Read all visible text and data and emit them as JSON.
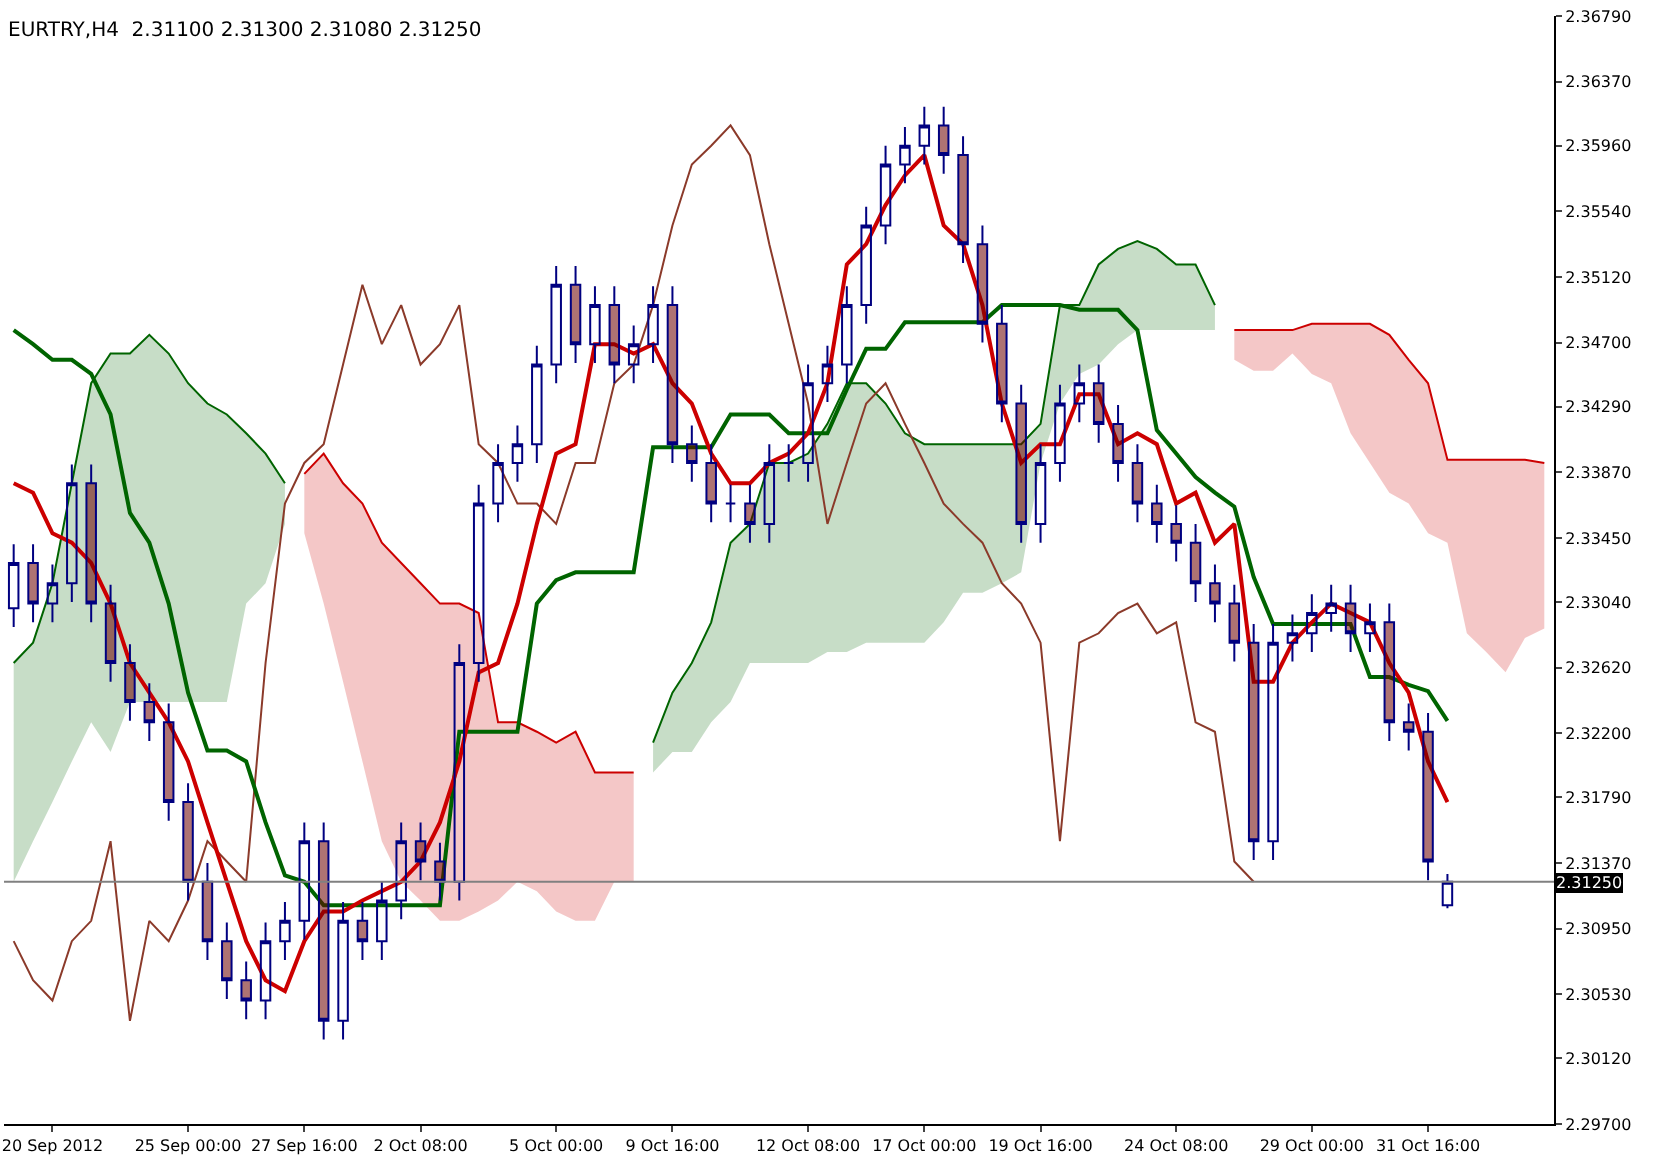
{
  "chart_data": {
    "type": "candlestick",
    "title": "EURTRY,H4  2.31100 2.31300 2.31080 2.31250",
    "categories": [
      null,
      null,
      "20 Sep 2012",
      null,
      null,
      null,
      null,
      null,
      null,
      "25 Sep 00:00",
      null,
      null,
      null,
      null,
      null,
      "27 Sep 16:00",
      null,
      null,
      null,
      null,
      null,
      "2 Oct 08:00",
      null,
      null,
      null,
      null,
      null,
      null,
      "5 Oct 00:00",
      null,
      null,
      null,
      null,
      null,
      "9 Oct 16:00",
      null,
      null,
      null,
      null,
      null,
      null,
      "12 Oct 08:00",
      null,
      null,
      null,
      null,
      null,
      "17 Oct 00:00",
      null,
      null,
      null,
      null,
      null,
      "19 Oct 16:00",
      null,
      null,
      null,
      null,
      null,
      null,
      "24 Oct 08:00",
      null,
      null,
      null,
      null,
      null,
      null,
      "29 Oct 00:00",
      null,
      null,
      null,
      null,
      null,
      "31 Oct 16:00",
      null,
      null,
      null,
      null,
      null,
      null
    ],
    "ohlc": [
      [
        2.33,
        2.3341,
        2.3288,
        2.3329
      ],
      [
        2.3329,
        2.3341,
        2.3291,
        2.3303
      ],
      [
        2.3303,
        2.3328,
        2.3291,
        2.3316
      ],
      [
        2.3316,
        2.3392,
        2.3304,
        2.338
      ],
      [
        2.338,
        2.3392,
        2.3291,
        2.3303
      ],
      [
        2.3303,
        2.3315,
        2.3253,
        2.3265
      ],
      [
        2.3265,
        2.3277,
        2.3228,
        2.324
      ],
      [
        2.324,
        2.3252,
        2.3215,
        2.3227
      ],
      [
        2.3227,
        2.3239,
        2.3164,
        2.3176
      ],
      [
        2.3176,
        2.3188,
        2.3113,
        2.3125
      ],
      [
        2.3125,
        2.3137,
        2.3075,
        2.3087
      ],
      [
        2.3087,
        2.3099,
        2.305,
        2.3062
      ],
      [
        2.3062,
        2.3074,
        2.3037,
        2.3049
      ],
      [
        2.3049,
        2.3099,
        2.3037,
        2.3087
      ],
      [
        2.3087,
        2.3112,
        2.3075,
        2.31
      ],
      [
        2.31,
        2.3163,
        2.3088,
        2.3151
      ],
      [
        2.3151,
        2.3163,
        2.3024,
        2.3036
      ],
      [
        2.3036,
        2.3112,
        2.3024,
        2.31
      ],
      [
        2.31,
        2.3112,
        2.3075,
        2.3087
      ],
      [
        2.3087,
        2.3125,
        2.3075,
        2.3113
      ],
      [
        2.3113,
        2.3163,
        2.3101,
        2.3151
      ],
      [
        2.3151,
        2.3163,
        2.3126,
        2.3138
      ],
      [
        2.3138,
        2.315,
        2.3113,
        2.3125
      ],
      [
        2.3125,
        2.3277,
        2.3113,
        2.3265
      ],
      [
        2.3265,
        2.3379,
        2.3253,
        2.3367
      ],
      [
        2.3367,
        2.3405,
        2.3355,
        2.3393
      ],
      [
        2.3393,
        2.3417,
        2.3381,
        2.3405
      ],
      [
        2.3405,
        2.3468,
        2.3393,
        2.3456
      ],
      [
        2.3456,
        2.3519,
        2.3444,
        2.3507
      ],
      [
        2.3507,
        2.3519,
        2.3457,
        2.3469
      ],
      [
        2.3469,
        2.3506,
        2.3457,
        2.3494
      ],
      [
        2.3494,
        2.3506,
        2.3444,
        2.3456
      ],
      [
        2.3456,
        2.3481,
        2.3444,
        2.3469
      ],
      [
        2.3469,
        2.3506,
        2.3457,
        2.3494
      ],
      [
        2.3494,
        2.3506,
        2.3393,
        2.3405
      ],
      [
        2.3405,
        2.3417,
        2.3381,
        2.3393
      ],
      [
        2.3393,
        2.3405,
        2.3355,
        2.3367
      ],
      [
        2.3367,
        2.3379,
        2.3355,
        2.3367
      ],
      [
        2.3367,
        2.3379,
        2.3342,
        2.3354
      ],
      [
        2.3354,
        2.3405,
        2.3342,
        2.3393
      ],
      [
        2.3393,
        2.3405,
        2.3381,
        2.3393
      ],
      [
        2.3393,
        2.3456,
        2.3381,
        2.3444
      ],
      [
        2.3444,
        2.3468,
        2.3432,
        2.3456
      ],
      [
        2.3456,
        2.3506,
        2.3444,
        2.3494
      ],
      [
        2.3494,
        2.3557,
        2.3482,
        2.3545
      ],
      [
        2.3545,
        2.3596,
        2.3533,
        2.3584
      ],
      [
        2.3584,
        2.3608,
        2.3572,
        2.3596
      ],
      [
        2.3596,
        2.3621,
        2.3584,
        2.3609
      ],
      [
        2.3609,
        2.3621,
        2.3578,
        2.359
      ],
      [
        2.359,
        2.3602,
        2.3521,
        2.3533
      ],
      [
        2.3533,
        2.3545,
        2.347,
        2.3482
      ],
      [
        2.3482,
        2.3494,
        2.3419,
        2.3431
      ],
      [
        2.3431,
        2.3443,
        2.3342,
        2.3354
      ],
      [
        2.3354,
        2.3405,
        2.3342,
        2.3393
      ],
      [
        2.3393,
        2.3443,
        2.3381,
        2.3431
      ],
      [
        2.3431,
        2.3456,
        2.3419,
        2.3444
      ],
      [
        2.3444,
        2.3456,
        2.3406,
        2.3418
      ],
      [
        2.3418,
        2.343,
        2.3381,
        2.3393
      ],
      [
        2.3393,
        2.3405,
        2.3355,
        2.3367
      ],
      [
        2.3367,
        2.3379,
        2.3342,
        2.3354
      ],
      [
        2.3354,
        2.3366,
        2.333,
        2.3342
      ],
      [
        2.3342,
        2.3354,
        2.3304,
        2.3316
      ],
      [
        2.3316,
        2.3328,
        2.3291,
        2.3303
      ],
      [
        2.3303,
        2.3315,
        2.3266,
        2.3278
      ],
      [
        2.3278,
        2.329,
        2.3139,
        2.3151
      ],
      [
        2.3151,
        2.329,
        2.3139,
        2.3278
      ],
      [
        2.3278,
        2.3296,
        2.3266,
        2.3284
      ],
      [
        2.3284,
        2.3309,
        2.3272,
        2.3297
      ],
      [
        2.3297,
        2.3315,
        2.3285,
        2.3303
      ],
      [
        2.3303,
        2.3315,
        2.3272,
        2.3284
      ],
      [
        2.3284,
        2.3303,
        2.3272,
        2.3291
      ],
      [
        2.3291,
        2.3303,
        2.3215,
        2.3227
      ],
      [
        2.3227,
        2.3239,
        2.3209,
        2.3221
      ],
      [
        2.3221,
        2.3233,
        2.3126,
        2.3138
      ],
      [
        2.311,
        2.313,
        2.3108,
        2.3125
      ],
      null,
      null,
      null,
      null,
      null
    ],
    "series": [
      {
        "type": "line",
        "color": "#006400",
        "values": [
          2.3265,
          2.3278,
          2.3316,
          2.338,
          2.3444,
          2.3463,
          2.3463,
          2.3475,
          2.3463,
          2.3444,
          2.3431,
          2.3424,
          2.3412,
          2.3399,
          2.338,
          null,
          null,
          null,
          null,
          null,
          null,
          null,
          null,
          null,
          null,
          null,
          null,
          null,
          null,
          null,
          null,
          null,
          null,
          2.3214,
          2.3246,
          2.3265,
          2.3291,
          2.3342,
          2.3354,
          2.3393,
          2.3393,
          2.3399,
          2.3418,
          2.3444,
          2.3444,
          2.3431,
          2.3412,
          2.3405,
          2.3405,
          2.3405,
          2.3405,
          2.3405,
          2.3405,
          2.3418,
          2.3494,
          2.3494,
          2.352,
          2.353,
          2.3535,
          2.353,
          2.352,
          2.352,
          2.3494,
          null,
          null,
          null,
          null,
          null,
          null,
          null,
          null,
          null,
          null,
          null,
          null,
          null,
          null,
          null,
          null,
          null
        ],
        "upper": [
          2.3265,
          2.3278,
          2.3316,
          2.338,
          2.3444,
          2.3463,
          2.3463,
          2.3475,
          2.3463,
          2.3444,
          2.3431,
          2.3424,
          2.3412,
          2.3399,
          2.338,
          null,
          null,
          null,
          null,
          null,
          null,
          null,
          null,
          null,
          null,
          null,
          null,
          null,
          null,
          null,
          null,
          null,
          null,
          2.3214,
          2.3246,
          2.3265,
          2.3291,
          2.3342,
          2.3354,
          2.3393,
          2.3393,
          2.3399,
          2.3418,
          2.3444,
          2.3444,
          2.3431,
          2.3412,
          2.3405,
          2.3405,
          2.3405,
          2.3405,
          2.3405,
          2.3405,
          2.3418,
          2.3494,
          2.3494,
          2.352,
          2.353,
          2.3535,
          2.353,
          2.352,
          2.352,
          2.3494,
          null,
          null,
          null,
          null,
          null,
          null,
          null,
          null,
          null,
          null,
          null,
          null,
          null,
          null,
          null,
          null,
          null
        ],
        "lower": [
          2.3125,
          2.3151,
          2.3176,
          2.3202,
          2.3227,
          2.3208,
          2.324,
          2.324,
          2.324,
          2.324,
          2.324,
          2.324,
          2.3303,
          2.3316,
          2.3354,
          null,
          null,
          null,
          null,
          null,
          null,
          null,
          null,
          null,
          null,
          null,
          null,
          null,
          null,
          null,
          null,
          null,
          null,
          2.3195,
          2.3208,
          2.3208,
          2.3227,
          2.324,
          2.3265,
          2.3265,
          2.3265,
          2.3265,
          2.3272,
          2.3272,
          2.3278,
          2.3278,
          2.3278,
          2.3278,
          2.3291,
          2.331,
          2.331,
          2.3316,
          2.3323,
          2.3393,
          2.3431,
          2.345,
          2.3456,
          2.3469,
          2.3478,
          2.3478,
          2.3478,
          2.3478,
          2.3478,
          null,
          null,
          null,
          null,
          null,
          null,
          null,
          null,
          null,
          null,
          null,
          null,
          null,
          null,
          null,
          null,
          null
        ]
      },
      {
        "type": "line",
        "color": "#cc0000",
        "values": [
          null,
          null,
          null,
          null,
          null,
          null,
          null,
          null,
          null,
          null,
          null,
          null,
          null,
          null,
          null,
          2.3386,
          2.3399,
          2.338,
          2.3367,
          2.3342,
          2.3329,
          2.3316,
          2.3303,
          2.3303,
          2.3297,
          2.3227,
          2.3227,
          2.3221,
          2.3214,
          2.3221,
          2.3195,
          2.3195,
          2.3195,
          null,
          null,
          null,
          null,
          null,
          null,
          null,
          null,
          null,
          null,
          null,
          null,
          null,
          null,
          null,
          null,
          null,
          null,
          null,
          null,
          null,
          null,
          null,
          null,
          null,
          null,
          null,
          null,
          null,
          null,
          2.3478,
          2.3478,
          2.3478,
          2.3478,
          2.3482,
          2.3482,
          2.3482,
          2.3482,
          2.3475,
          2.3459,
          2.3444,
          2.3395,
          2.3395,
          2.3395,
          2.3395,
          2.3395,
          2.3393
        ],
        "upper": [
          null,
          null,
          null,
          null,
          null,
          null,
          null,
          null,
          null,
          null,
          null,
          null,
          null,
          null,
          null,
          2.3386,
          2.3399,
          2.338,
          2.3367,
          2.3342,
          2.3329,
          2.3316,
          2.3303,
          2.3303,
          2.3297,
          2.3227,
          2.3227,
          2.3221,
          2.3214,
          2.3221,
          2.3195,
          2.3195,
          2.3195,
          null,
          null,
          null,
          null,
          null,
          null,
          null,
          null,
          null,
          null,
          null,
          null,
          null,
          null,
          null,
          null,
          null,
          null,
          null,
          null,
          null,
          null,
          null,
          null,
          null,
          null,
          null,
          null,
          null,
          null,
          2.3478,
          2.3478,
          2.3478,
          2.3478,
          2.3482,
          2.3482,
          2.3482,
          2.3482,
          2.3475,
          2.3459,
          2.3444,
          2.3395,
          2.3395,
          2.3395,
          2.3395,
          2.3395,
          2.3393
        ],
        "lower": [
          null,
          null,
          null,
          null,
          null,
          null,
          null,
          null,
          null,
          null,
          null,
          null,
          null,
          null,
          null,
          2.3348,
          2.3303,
          2.3253,
          2.3202,
          2.3151,
          2.3125,
          2.3113,
          2.31,
          2.31,
          2.3106,
          2.3113,
          2.3125,
          2.3119,
          2.3106,
          2.31,
          2.31,
          2.3125,
          2.3125,
          null,
          null,
          null,
          null,
          null,
          null,
          null,
          null,
          null,
          null,
          null,
          null,
          null,
          null,
          null,
          null,
          null,
          null,
          null,
          null,
          null,
          null,
          null,
          null,
          null,
          null,
          null,
          null,
          null,
          null,
          2.3459,
          2.3452,
          2.3452,
          2.3463,
          2.345,
          2.3444,
          2.3412,
          2.3393,
          2.3374,
          2.3367,
          2.3348,
          2.3342,
          2.3284,
          2.3272,
          2.3259,
          2.3281,
          2.3287
        ]
      },
      {
        "type": "line",
        "color": "#8b3a2a",
        "values": [
          2.3087,
          2.3062,
          2.3049,
          2.3087,
          2.31,
          2.3151,
          2.3036,
          2.31,
          2.3087,
          2.3113,
          2.3151,
          2.3138,
          2.3125,
          2.3265,
          2.3367,
          2.3393,
          2.3405,
          2.3456,
          2.3507,
          2.3469,
          2.3494,
          2.3456,
          2.3469,
          2.3494,
          2.3405,
          2.3393,
          2.3367,
          2.3367,
          2.3354,
          2.3393,
          2.3393,
          2.3444,
          2.3456,
          2.3494,
          2.3545,
          2.3584,
          2.3596,
          2.3609,
          2.359,
          2.3533,
          2.3482,
          2.3431,
          2.3354,
          2.3393,
          2.3431,
          2.3444,
          2.3418,
          2.3393,
          2.3367,
          2.3354,
          2.3342,
          2.3316,
          2.3303,
          2.3278,
          2.3151,
          2.3278,
          2.3284,
          2.3297,
          2.3303,
          2.3284,
          2.3291,
          2.3227,
          2.3221,
          2.3138,
          2.3125,
          null,
          null,
          null,
          null,
          null,
          null,
          null,
          null,
          null,
          null,
          null,
          null,
          null,
          null,
          null
        ]
      },
      {
        "type": "line",
        "color": "#006400",
        "values": [
          2.3478,
          2.3469,
          2.3459,
          2.3459,
          2.345,
          2.3424,
          2.3361,
          2.3342,
          2.3303,
          2.3246,
          2.3209,
          2.3209,
          2.3202,
          2.3163,
          2.3129,
          2.3125,
          2.311,
          2.311,
          2.311,
          2.311,
          2.311,
          2.311,
          2.311,
          2.3221,
          2.3221,
          2.3221,
          2.3221,
          2.3303,
          2.3318,
          2.3323,
          2.3323,
          2.3323,
          2.3323,
          2.3403,
          2.3403,
          2.3403,
          2.3403,
          2.3424,
          2.3424,
          2.3424,
          2.3412,
          2.3412,
          2.3412,
          2.344,
          2.3466,
          2.3466,
          2.3483,
          2.3483,
          2.3483,
          2.3483,
          2.3483,
          2.3494,
          2.3494,
          2.3494,
          2.3494,
          2.3491,
          2.3491,
          2.3491,
          2.3478,
          2.3414,
          2.3399,
          2.3384,
          2.3374,
          2.3365,
          2.332,
          2.329,
          2.329,
          2.329,
          2.329,
          2.329,
          2.3256,
          2.3256,
          2.3251,
          2.3247,
          2.3228,
          null,
          null,
          null,
          null,
          null
        ]
      },
      {
        "type": "line",
        "color": "#cc0000",
        "values": [
          2.338,
          2.3374,
          2.3348,
          2.3342,
          2.3329,
          2.3303,
          2.3265,
          2.3246,
          2.3227,
          2.3202,
          2.3163,
          2.3125,
          2.3087,
          2.3062,
          2.3055,
          2.3087,
          2.3106,
          2.3106,
          2.3113,
          2.3119,
          2.3125,
          2.3138,
          2.3163,
          2.3202,
          2.3259,
          2.3265,
          2.3303,
          2.3354,
          2.3399,
          2.3405,
          2.3469,
          2.3469,
          2.3463,
          2.3469,
          2.3444,
          2.3431,
          2.3399,
          2.338,
          2.338,
          2.3393,
          2.3399,
          2.3412,
          2.3444,
          2.352,
          2.3533,
          2.3558,
          2.3577,
          2.359,
          2.3545,
          2.3533,
          2.3494,
          2.3431,
          2.3393,
          2.3405,
          2.3405,
          2.3437,
          2.3437,
          2.3405,
          2.3412,
          2.3405,
          2.3367,
          2.3374,
          2.3342,
          2.3354,
          2.3253,
          2.3253,
          2.3278,
          2.3291,
          2.3303,
          2.3297,
          2.3291,
          2.3265,
          2.3246,
          2.3202,
          2.3176,
          null,
          null,
          null,
          null,
          null
        ]
      }
    ],
    "ylim": [
      2.297,
      2.3679
    ],
    "yticks": [
      {
        "value": 2.3679,
        "label": "2.36790"
      },
      {
        "value": 2.3637,
        "label": "2.36370"
      },
      {
        "value": 2.3596,
        "label": "2.35960"
      },
      {
        "value": 2.3554,
        "label": "2.35540"
      },
      {
        "value": 2.3512,
        "label": "2.35120"
      },
      {
        "value": 2.347,
        "label": "2.34700"
      },
      {
        "value": 2.3429,
        "label": "2.34290"
      },
      {
        "value": 2.3387,
        "label": "2.33870"
      },
      {
        "value": 2.3345,
        "label": "2.33450"
      },
      {
        "value": 2.3304,
        "label": "2.33040"
      },
      {
        "value": 2.3262,
        "label": "2.32620"
      },
      {
        "value": 2.322,
        "label": "2.32200"
      },
      {
        "value": 2.3179,
        "label": "2.31790"
      },
      {
        "value": 2.3137,
        "label": "2.31370"
      },
      {
        "value": 2.3095,
        "label": "2.30950"
      },
      {
        "value": 2.3053,
        "label": "2.30530"
      },
      {
        "value": 2.3012,
        "label": "2.30120"
      },
      {
        "value": 2.297,
        "label": "2.29700"
      }
    ],
    "ref_lines": [
      {
        "axis": "y",
        "value": 2.3125,
        "label": "2.31250",
        "color": "#808080"
      }
    ],
    "tick_labels": true
  }
}
